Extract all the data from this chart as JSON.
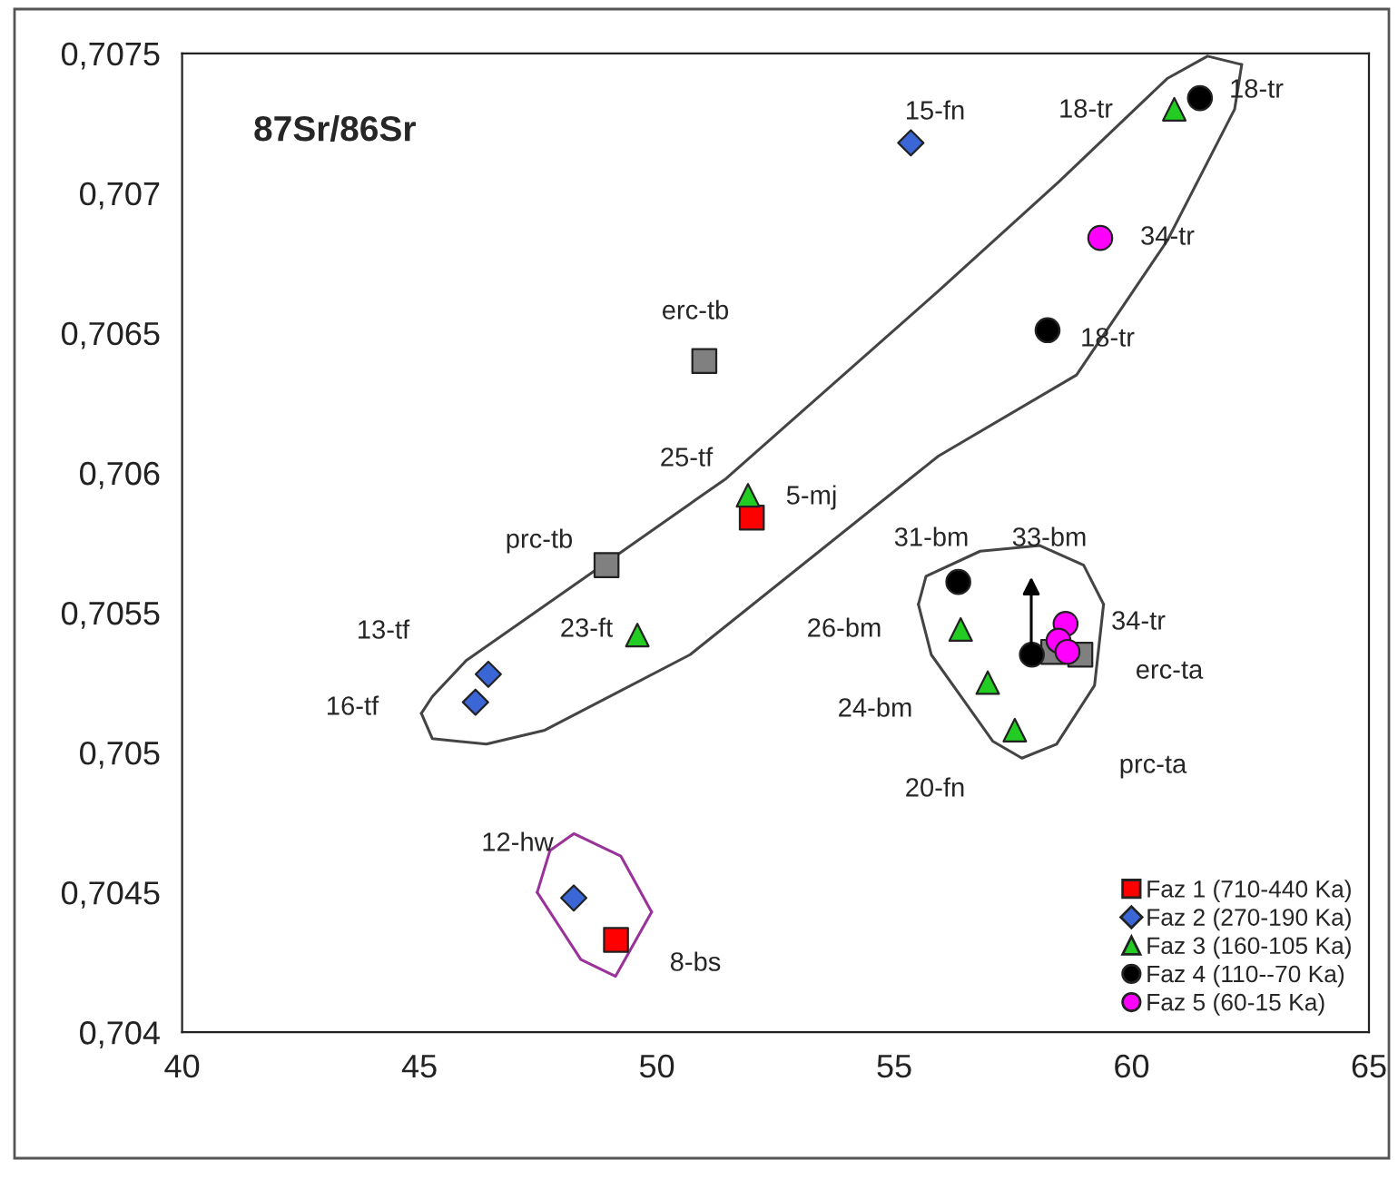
{
  "chart_data": {
    "type": "scatter",
    "title": "87Sr/86Sr",
    "xlim": [
      40,
      65
    ],
    "xticks": [
      40,
      45,
      50,
      55,
      60,
      65
    ],
    "ylim": [
      0.704,
      0.7075
    ],
    "yticks": [
      {
        "value": 0.704,
        "label": "0,704"
      },
      {
        "value": 0.7045,
        "label": "0,7045"
      },
      {
        "value": 0.705,
        "label": "0,705"
      },
      {
        "value": 0.7055,
        "label": "0,7055"
      },
      {
        "value": 0.706,
        "label": "0,706"
      },
      {
        "value": 0.7065,
        "label": "0,7065"
      },
      {
        "value": 0.707,
        "label": "0,707"
      },
      {
        "value": 0.7075,
        "label": "0,7075"
      }
    ],
    "grid": false,
    "legend": "bottom right",
    "series": [
      {
        "type": "line",
        "color": "#444444",
        "marker": "none",
        "x": [
          45.04,
          45.27,
          45.99,
          48.52,
          51.46,
          55.93,
          58.46,
          60.75,
          61.6,
          62.32
        ],
        "values": [
          0.70514,
          0.7052,
          0.70533,
          0.70563,
          0.70598,
          0.70665,
          0.70704,
          0.70741,
          0.70749,
          0.70746
        ]
      },
      {
        "type": "line",
        "color": "#444444",
        "marker": "none",
        "x": [
          45.04,
          45.27,
          46.41,
          47.64,
          50.7,
          55.93,
          58.84,
          60.75,
          62.17,
          62.32
        ],
        "values": [
          0.70514,
          0.70505,
          0.70503,
          0.70508,
          0.70535,
          0.70606,
          0.70635,
          0.70683,
          0.7073,
          0.70746
        ]
      },
      {
        "type": "line",
        "color": "#444444",
        "marker": "none",
        "x": [
          55.51,
          55.67,
          56.81,
          58.07,
          58.99,
          59.41
        ],
        "values": [
          0.70553,
          0.70563,
          0.70572,
          0.70574,
          0.70567,
          0.70553
        ]
      },
      {
        "type": "line",
        "color": "#444444",
        "marker": "none",
        "x": [
          55.51,
          55.78,
          57.08,
          57.69,
          58.42,
          59.22,
          59.41
        ],
        "values": [
          0.70553,
          0.70535,
          0.70504,
          0.70498,
          0.70503,
          0.70524,
          0.70553
        ]
      },
      {
        "type": "line",
        "color": "#993399",
        "marker": "none",
        "x": [
          47.48,
          47.75,
          48.25,
          49.24,
          49.89
        ],
        "values": [
          0.7045,
          0.70465,
          0.70471,
          0.70463,
          0.70443
        ]
      },
      {
        "type": "line",
        "color": "#993399",
        "marker": "none",
        "x": [
          47.48,
          48.4,
          49.13,
          49.89
        ],
        "values": [
          0.7045,
          0.70426,
          0.7042,
          0.70443
        ]
      },
      {
        "color": "#808080",
        "marker": "square",
        "x": [
          51.0,
          48.94,
          58.35,
          58.92
        ],
        "values": [
          0.7064,
          0.70567,
          0.70536,
          0.70535
        ]
      },
      {
        "name": "Faz 1 (710-440 Ka)",
        "color": "#ff0000",
        "marker": "square",
        "x": [
          52.0,
          49.14
        ],
        "values": [
          0.70584,
          0.70433
        ]
      },
      {
        "name": "Faz 2 (270-190 Ka)",
        "color": "#3a66d6",
        "marker": "diamond",
        "x": [
          55.35,
          46.45,
          46.18,
          48.25
        ],
        "values": [
          0.70718,
          0.70528,
          0.70518,
          0.70448
        ]
      },
      {
        "name": "Faz 3 (160-105 Ka)",
        "color": "#22cc22",
        "marker": "triangle",
        "x": [
          60.9,
          51.92,
          49.59,
          56.4,
          56.97,
          57.54
        ],
        "values": [
          0.7073,
          0.70592,
          0.70542,
          0.70544,
          0.70525,
          0.70508
        ]
      },
      {
        "name": "Faz 4 (110--70 Ka)",
        "color": "#000000",
        "marker": "circle",
        "x": [
          61.44,
          58.23,
          56.35,
          57.9
        ],
        "values": [
          0.70734,
          0.70651,
          0.70561,
          0.70535
        ]
      },
      {
        "name": "Faz 5 (60-15 Ka)",
        "color": "#ff00ff",
        "marker": "circle",
        "x": [
          59.34,
          58.61,
          58.46,
          58.65
        ],
        "values": [
          0.70684,
          0.70546,
          0.7054,
          0.70536
        ]
      }
    ],
    "annotations": [
      "15-fn",
      "18-tr",
      "18-tr",
      "34-tr",
      "18-tr",
      "erc-tb",
      "25-tf",
      "5-mj",
      "prc-tb",
      "31-bm",
      "33-bm",
      "13-tf",
      "23-ft",
      "16-tf",
      "26-bm",
      "34-tr",
      "24-bm",
      "erc-ta",
      "20-fn",
      "prc-ta",
      "12-hw",
      "8-bs"
    ]
  }
}
